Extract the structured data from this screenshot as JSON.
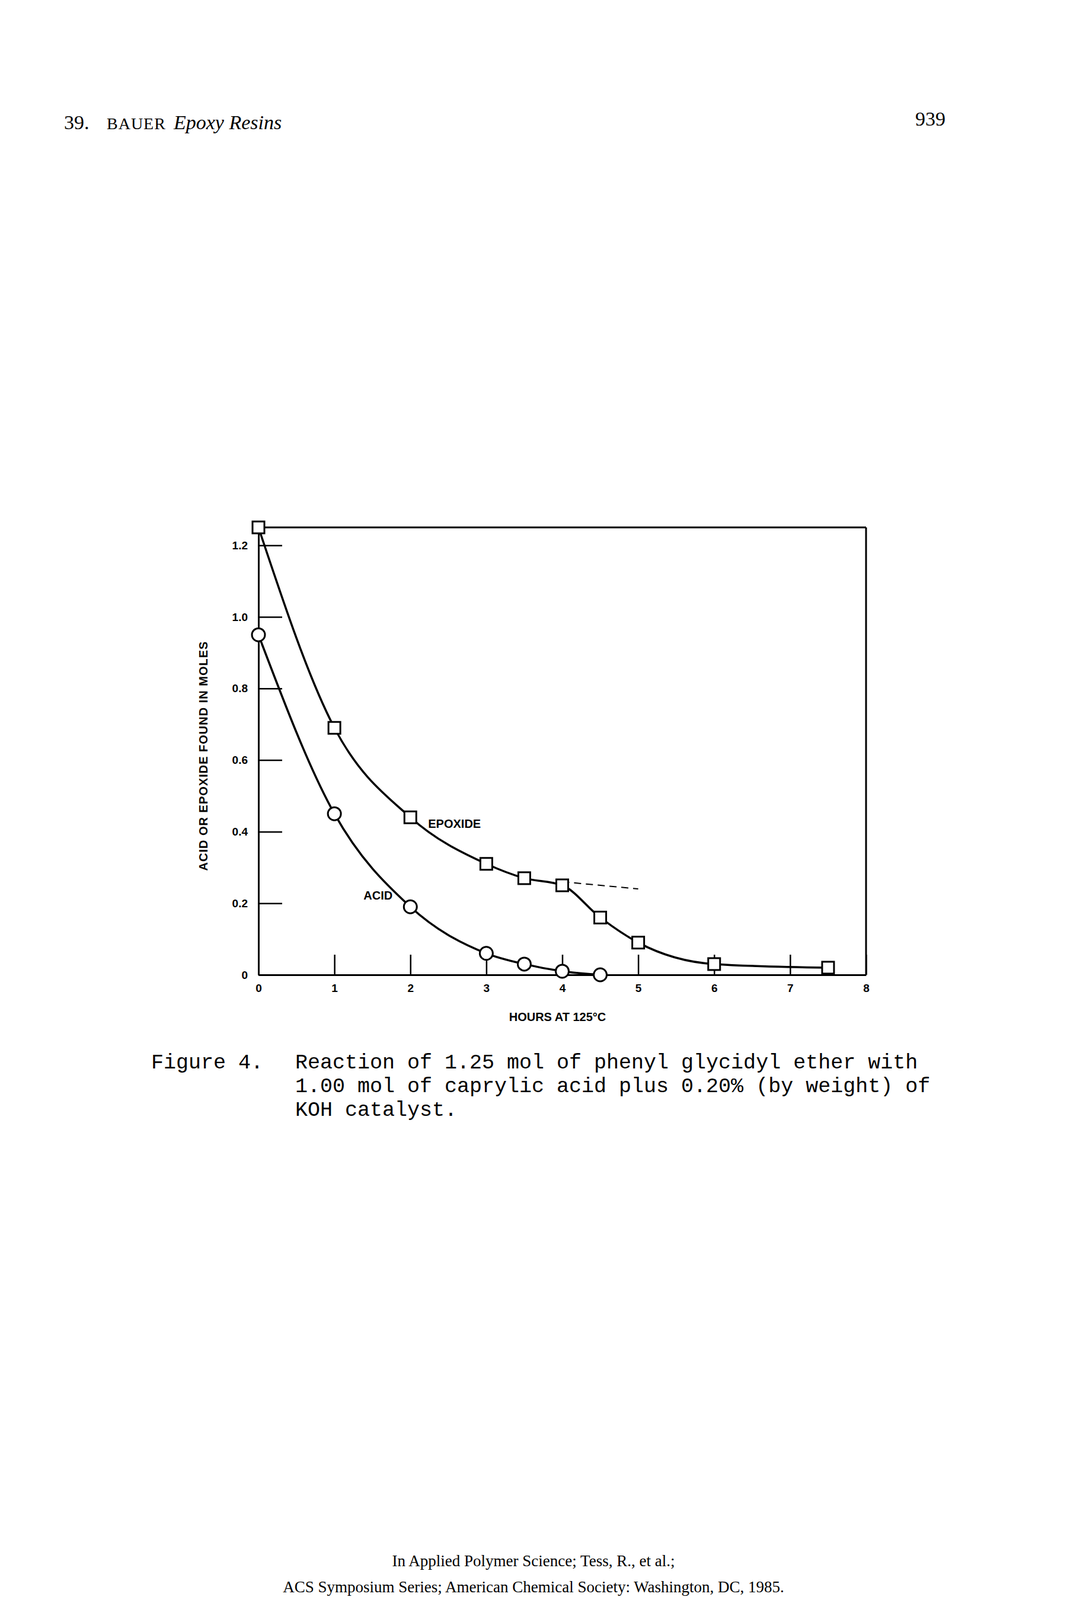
{
  "page": {
    "header": {
      "chapter": "39.",
      "author": "BAUER",
      "running_title": "Epoxy Resins",
      "page_number": "939"
    },
    "figure_label": "Figure 4.",
    "caption": [
      "Reaction of 1.25 mol of phenyl glycidyl ether with",
      "1.00 mol of caprylic acid plus 0.20% (by weight) of",
      "KOH catalyst."
    ],
    "footer": [
      "In Applied Polymer Science; Tess, R., et al.;",
      "ACS Symposium Series; American Chemical Society: Washington, DC, 1985."
    ]
  },
  "chart_data": {
    "type": "line",
    "x_label": "HOURS AT 125°C",
    "y_label": "ACID OR EPOXIDE FOUND IN MOLES",
    "xlim": [
      0,
      8
    ],
    "xticks": [
      0,
      1,
      2,
      3,
      4,
      5,
      6,
      7,
      8
    ],
    "ylim": [
      0,
      1.25
    ],
    "yticks": [
      0,
      0.2,
      0.4,
      0.6,
      {
        "value": 0.8,
        "label": "0.8"
      },
      {
        "value": 1,
        "label": "1.0"
      },
      1.2
    ],
    "grid": false,
    "series": [
      {
        "name": "EPOXIDE",
        "color": "#000000",
        "marker": "square",
        "line_style": "solid",
        "x": [
          0,
          1,
          2,
          3,
          3.5,
          4,
          4.5,
          5,
          6,
          7.5
        ],
        "values": [
          1.25,
          0.69,
          0.44,
          0.31,
          0.27,
          0.25,
          0.16,
          0.09,
          0.03,
          0.02
        ]
      },
      {
        "name": "ACID",
        "color": "#000000",
        "marker": "circle",
        "line_style": "solid",
        "x": [
          0,
          1,
          2,
          3,
          3.5,
          4,
          4.5
        ],
        "values": [
          0.95,
          0.45,
          0.19,
          0.06,
          0.03,
          0.01,
          0
        ]
      },
      {
        "color": "#000000",
        "marker": "none",
        "line_style": "dashed",
        "x": [
          4,
          5
        ],
        "values": [
          0.26,
          0.24
        ]
      }
    ]
  }
}
